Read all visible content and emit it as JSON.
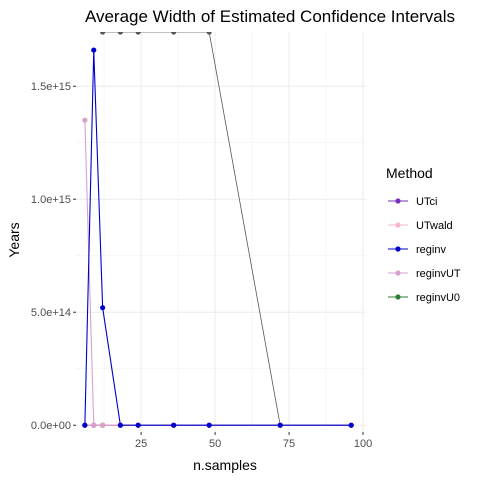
{
  "chart_data": {
    "type": "line",
    "title": "Average Width of Estimated Confidence Intervals",
    "xlabel": "n.samples",
    "ylabel": "Years",
    "xlim": [
      3,
      101
    ],
    "ylim": [
      -30000000000000,
      1740000000000000
    ],
    "x_ticks": [
      25,
      50,
      75,
      100
    ],
    "x_tick_labels": [
      "25",
      "50",
      "75",
      "100"
    ],
    "y_ticks": [
      0,
      500000000000000,
      1000000000000000,
      1500000000000000
    ],
    "y_tick_labels": [
      "0.0e+00",
      "5.0e+14",
      "1.0e+15",
      "1.5e+15"
    ],
    "grid": true,
    "legend": {
      "title": "Method",
      "position": "right"
    },
    "series": [
      {
        "name": "UTci",
        "color": "#7b2fbe",
        "marker": "circle",
        "points": [
          [
            6,
            0
          ],
          [
            9,
            0
          ],
          [
            12,
            0
          ],
          [
            18,
            0
          ],
          [
            24,
            0
          ],
          [
            36,
            0
          ],
          [
            48,
            0
          ],
          [
            72,
            0
          ],
          [
            96,
            0
          ]
        ]
      },
      {
        "name": "UTwald",
        "color": "#f5b8c8",
        "marker": "circle",
        "points": [
          [
            6,
            0
          ],
          [
            9,
            0
          ],
          [
            12,
            0
          ],
          [
            18,
            0
          ],
          [
            24,
            0
          ],
          [
            36,
            0
          ],
          [
            48,
            0
          ],
          [
            72,
            0
          ],
          [
            96,
            0
          ]
        ]
      },
      {
        "name": "reginv",
        "color": "#0000cc",
        "marker": "circle",
        "points": [
          [
            6,
            0
          ],
          [
            9,
            1660000000000000
          ],
          [
            12,
            520000000000000
          ],
          [
            18,
            0
          ],
          [
            24,
            0
          ],
          [
            36,
            0
          ],
          [
            48,
            0
          ],
          [
            72,
            0
          ],
          [
            96,
            0
          ]
        ]
      },
      {
        "name": "reginvUT",
        "color": "#d9a0cc",
        "marker": "circle",
        "points": [
          [
            6,
            1350000000000000
          ],
          [
            9,
            0
          ],
          [
            12,
            0
          ],
          [
            18,
            0
          ],
          [
            24,
            0
          ],
          [
            36,
            0
          ],
          [
            48,
            0
          ],
          [
            72,
            0
          ],
          [
            96,
            0
          ]
        ]
      },
      {
        "name": "reginvU0",
        "color": "#2e7d32",
        "marker": "circle",
        "points": [
          [
            6,
            0
          ],
          [
            9,
            0
          ],
          [
            12,
            0
          ],
          [
            18,
            0
          ],
          [
            24,
            0
          ],
          [
            36,
            0
          ],
          [
            48,
            0
          ],
          [
            72,
            0
          ],
          [
            96,
            0
          ]
        ]
      }
    ],
    "annotation_series": [
      {
        "color": "#555555",
        "marker": "circle",
        "points": [
          [
            12,
            1740000000000000
          ],
          [
            18,
            1740000000000000
          ],
          [
            24,
            1740000000000000
          ],
          [
            36,
            1740000000000000
          ],
          [
            48,
            1740000000000000
          ],
          [
            72,
            0
          ]
        ]
      }
    ]
  }
}
